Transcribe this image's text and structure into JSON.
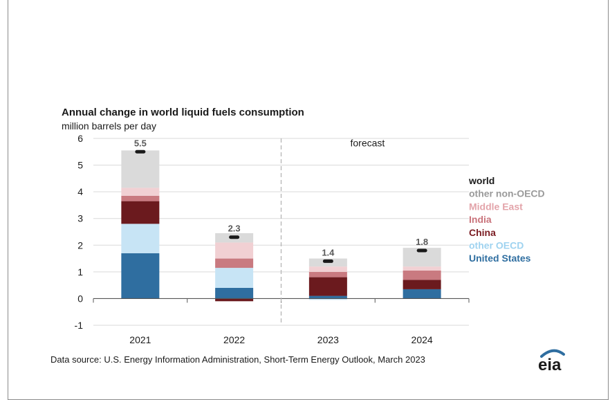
{
  "chart_data": {
    "type": "bar",
    "stacked": true,
    "title": "Annual change in world liquid fuels consumption",
    "subtitle": "million barrels per day",
    "categories": [
      "2021",
      "2022",
      "2023",
      "2024"
    ],
    "ylim": [
      -1,
      6
    ],
    "yticks": [
      "6",
      "5",
      "4",
      "3",
      "2",
      "1",
      "0",
      "-1"
    ],
    "forecast_label": "forecast",
    "forecast_starts_after": "2022",
    "series": [
      {
        "name": "United States",
        "color": "#2f6ea0",
        "values": [
          1.7,
          0.4,
          0.1,
          0.35
        ]
      },
      {
        "name": "other OECD",
        "color": "#c7e4f5",
        "values": [
          1.1,
          0.75,
          -0.05,
          0.0
        ]
      },
      {
        "name": "China",
        "color": "#6b1a1e",
        "values": [
          0.85,
          -0.1,
          0.7,
          0.35
        ]
      },
      {
        "name": "India",
        "color": "#c97a80",
        "values": [
          0.2,
          0.35,
          0.2,
          0.35
        ]
      },
      {
        "name": "Middle East",
        "color": "#f1d0d3",
        "values": [
          0.3,
          0.6,
          0.2,
          0.15
        ]
      },
      {
        "name": "other non-OECD",
        "color": "#dadada",
        "values": [
          1.4,
          0.35,
          0.3,
          0.7
        ]
      }
    ],
    "world": {
      "name": "world",
      "color": "#1a1a1a",
      "values": [
        5.5,
        2.3,
        1.4,
        1.8
      ],
      "labels": [
        "5.5",
        "2.3",
        "1.4",
        "1.8"
      ]
    },
    "legend_order": [
      "world",
      "other non-OECD",
      "Middle East",
      "India",
      "China",
      "other OECD",
      "United States"
    ],
    "legend_colors": {
      "world": "#1a1a1a",
      "other non-OECD": "#9a9a9a",
      "Middle East": "#e3a4aa",
      "India": "#c9737b",
      "China": "#7a1c22",
      "other OECD": "#9fd3f0",
      "United States": "#2f6ea0"
    },
    "legend_position": "right"
  },
  "source": "Data source: U.S. Energy Information Administration, Short-Term Energy Outlook, March 2023",
  "logo": {
    "text": "eia",
    "color": "#1a1a1a",
    "accent": "#2f6ea0"
  }
}
